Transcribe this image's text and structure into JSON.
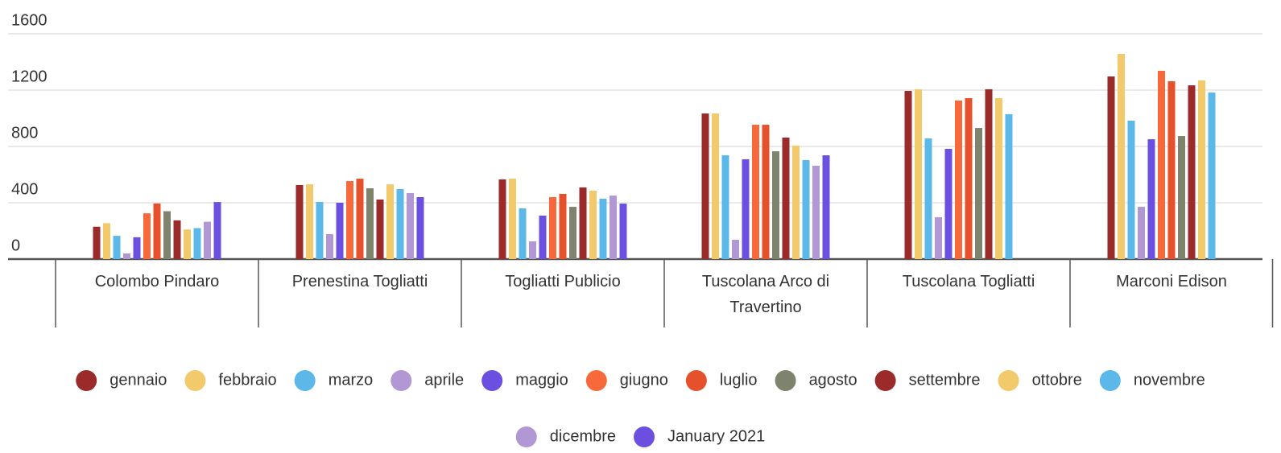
{
  "chart_data": {
    "type": "bar",
    "categories": [
      "Colombo Pindaro",
      "Prenestina Togliatti",
      "Togliatti Publicio",
      "Tuscolana Arco di Travertino",
      "Tuscolana Togliatti",
      "Marconi Edison"
    ],
    "series": [
      {
        "name": "gennaio",
        "color": "#9b2a2a",
        "values": [
          230,
          526,
          566,
          1034,
          1194,
          1297
        ]
      },
      {
        "name": "febbraio",
        "color": "#f2c96b",
        "values": [
          255,
          531,
          571,
          1034,
          1206,
          1457
        ]
      },
      {
        "name": "marzo",
        "color": "#5bb8e8",
        "values": [
          165,
          406,
          360,
          737,
          857,
          983
        ]
      },
      {
        "name": "aprile",
        "color": "#b197d3",
        "values": [
          40,
          177,
          126,
          137,
          297,
          371
        ]
      },
      {
        "name": "maggio",
        "color": "#6a4fe0",
        "values": [
          155,
          400,
          309,
          709,
          783,
          851
        ]
      },
      {
        "name": "giugno",
        "color": "#f7693a",
        "values": [
          325,
          554,
          440,
          954,
          1126,
          1337
        ]
      },
      {
        "name": "luglio",
        "color": "#e5512a",
        "values": [
          395,
          571,
          463,
          954,
          1143,
          1263
        ]
      },
      {
        "name": "agosto",
        "color": "#7d836c",
        "values": [
          340,
          503,
          371,
          766,
          931,
          874
        ]
      },
      {
        "name": "settembre",
        "color": "#9b2a2a",
        "values": [
          275,
          423,
          509,
          863,
          1206,
          1234
        ]
      },
      {
        "name": "ottobre",
        "color": "#f2c96b",
        "values": [
          210,
          531,
          486,
          806,
          1143,
          1269
        ]
      },
      {
        "name": "novembre",
        "color": "#5bb8e8",
        "values": [
          220,
          497,
          429,
          703,
          1029,
          1183
        ]
      },
      {
        "name": "dicembre",
        "color": "#b197d3",
        "values": [
          265,
          469,
          451,
          663,
          null,
          null
        ]
      },
      {
        "name": "January 2021",
        "color": "#6a4fe0",
        "values": [
          405,
          440,
          394,
          737,
          null,
          null
        ]
      }
    ],
    "ylim": [
      0,
      1600
    ],
    "yticks": [
      0,
      400,
      800,
      1200,
      1600
    ],
    "grid": true,
    "legend": "bottom"
  }
}
